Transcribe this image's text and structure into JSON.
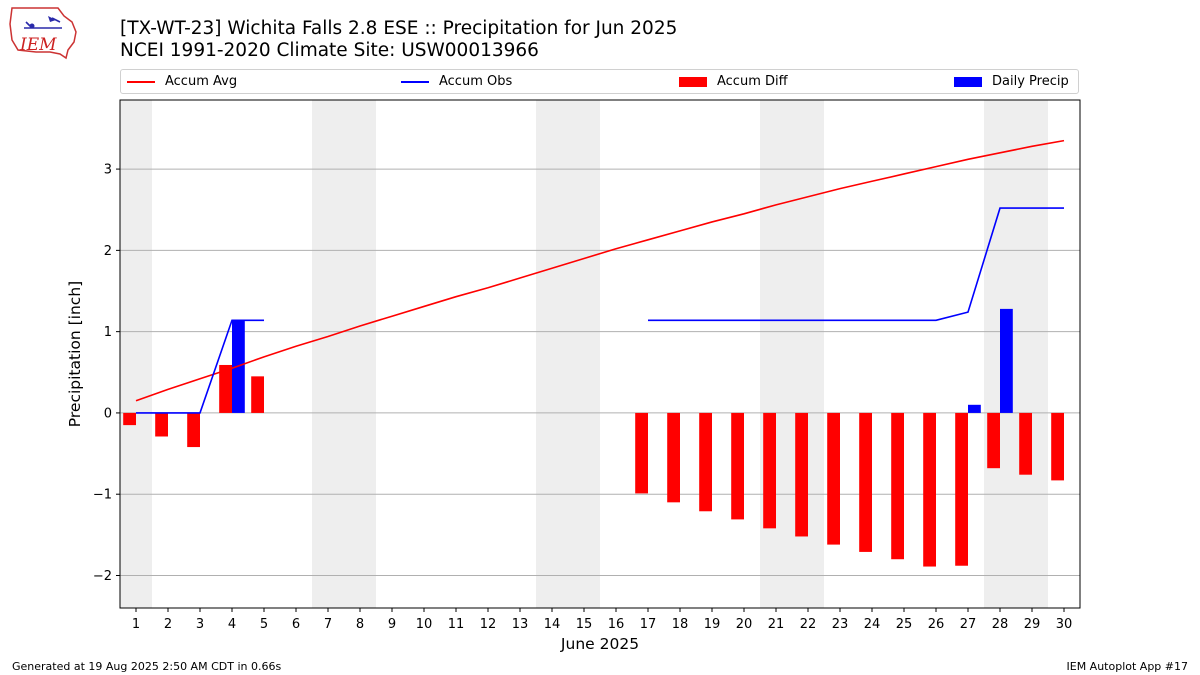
{
  "logo": {
    "text": "IEM"
  },
  "header": {
    "title_line1": "[TX-WT-23] Wichita Falls 2.8 ESE :: Precipitation for Jun 2025",
    "title_line2": "NCEI 1991-2020 Climate Site: USW00013966"
  },
  "legend": {
    "placement": "top",
    "items": [
      {
        "label": "Accum Avg",
        "kind": "line",
        "color": "#ff0000"
      },
      {
        "label": "Accum Obs",
        "kind": "line",
        "color": "#0000ff"
      },
      {
        "label": "Accum Diff",
        "kind": "bar",
        "color": "#ff0000"
      },
      {
        "label": "Daily Precip",
        "kind": "bar",
        "color": "#0000ff"
      }
    ]
  },
  "footer": {
    "left": "Generated at 19 Aug 2025 2:50 AM CDT in 0.66s",
    "right": "IEM Autoplot App #17"
  },
  "chart_data": {
    "type": "bar",
    "xlabel": "June 2025",
    "ylabel": "Precipitation [inch]",
    "x": [
      1,
      2,
      3,
      4,
      5,
      6,
      7,
      8,
      9,
      10,
      11,
      12,
      13,
      14,
      15,
      16,
      17,
      18,
      19,
      20,
      21,
      22,
      23,
      24,
      25,
      26,
      27,
      28,
      29,
      30
    ],
    "xlim": [
      0.5,
      30.5
    ],
    "ylim": [
      -2.4,
      3.85
    ],
    "yticks": [
      -2,
      -1,
      0,
      1,
      2,
      3
    ],
    "ytick_labels": [
      "−2",
      "−1",
      "0",
      "1",
      "2",
      "3"
    ],
    "grid": "horizontal",
    "weekend_shading_days": [
      1,
      7,
      8,
      14,
      15,
      21,
      22,
      28,
      29
    ],
    "shading_color": "#eeeeee",
    "series": [
      {
        "name": "Accum Avg",
        "kind": "line",
        "color": "#ff0000",
        "values": [
          0.15,
          0.29,
          0.42,
          0.55,
          0.69,
          0.82,
          0.94,
          1.07,
          1.19,
          1.31,
          1.43,
          1.54,
          1.66,
          1.78,
          1.9,
          2.02,
          2.13,
          2.24,
          2.35,
          2.45,
          2.56,
          2.66,
          2.76,
          2.85,
          2.94,
          3.03,
          3.12,
          3.2,
          3.28,
          3.35
        ]
      },
      {
        "name": "Accum Obs",
        "kind": "line",
        "color": "#0000ff",
        "values": [
          0.0,
          0.0,
          0.0,
          1.14,
          1.14,
          null,
          null,
          null,
          null,
          null,
          null,
          null,
          null,
          null,
          null,
          null,
          1.14,
          1.14,
          1.14,
          1.14,
          1.14,
          1.14,
          1.14,
          1.14,
          1.14,
          1.14,
          1.24,
          2.52,
          2.52,
          2.52
        ]
      },
      {
        "name": "Accum Diff",
        "kind": "bar",
        "color": "#ff0000",
        "values": [
          -0.15,
          -0.29,
          -0.42,
          0.59,
          0.45,
          null,
          null,
          null,
          null,
          null,
          null,
          null,
          null,
          null,
          null,
          null,
          -0.99,
          -1.1,
          -1.21,
          -1.31,
          -1.42,
          -1.52,
          -1.62,
          -1.71,
          -1.8,
          -1.89,
          -1.88,
          -0.68,
          -0.76,
          -0.83
        ]
      },
      {
        "name": "Daily Precip",
        "kind": "bar",
        "color": "#0000ff",
        "values": [
          0,
          0,
          0,
          1.14,
          0,
          null,
          null,
          null,
          null,
          null,
          null,
          null,
          null,
          null,
          null,
          null,
          0,
          0,
          0,
          0,
          0,
          0,
          0,
          0,
          0,
          0,
          0.1,
          1.28,
          0,
          0
        ]
      }
    ]
  }
}
